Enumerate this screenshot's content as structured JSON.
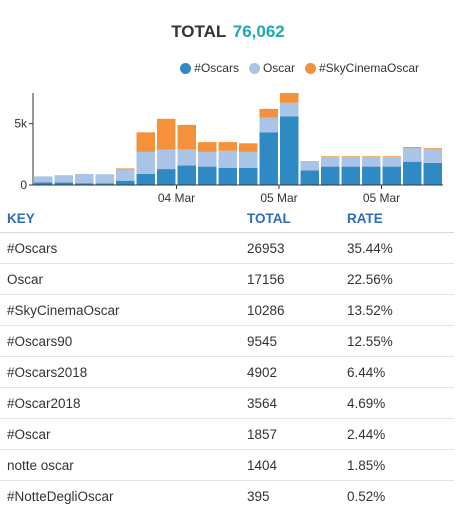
{
  "header": {
    "label": "TOTAL",
    "value": "76,062"
  },
  "colors": {
    "oscars_hash": "#2f8ac4",
    "oscar": "#a9c4e6",
    "skycinema": "#f5913b",
    "total_value": "#1fa6b3",
    "table_header": "#2e6db4"
  },
  "chart_data": {
    "type": "bar",
    "stacked": true,
    "title": "",
    "xlabel": "",
    "ylabel": "",
    "ylim": [
      0,
      7500
    ],
    "y_ticks": [
      0,
      5000
    ],
    "y_tick_labels": [
      "0",
      "5k"
    ],
    "x_tick_labels": [
      {
        "after_bar_index": 6,
        "label": "04 Mar"
      },
      {
        "after_bar_index": 11,
        "label": "05 Mar"
      },
      {
        "after_bar_index": 16,
        "label": "05 Mar"
      }
    ],
    "series": [
      {
        "name": "#Oscars",
        "color": "#2f8ac4",
        "values": [
          200,
          200,
          150,
          120,
          350,
          900,
          1300,
          1600,
          1500,
          1400,
          1400,
          4300,
          5600,
          1200,
          1500,
          1500,
          1500,
          1500,
          1900,
          1800
        ]
      },
      {
        "name": "Oscar",
        "color": "#a9c4e6",
        "values": [
          500,
          600,
          750,
          750,
          900,
          1800,
          1600,
          1300,
          1200,
          1400,
          1300,
          1200,
          1100,
          700,
          800,
          800,
          800,
          800,
          1100,
          1100
        ]
      },
      {
        "name": "#SkyCinemaOscar",
        "color": "#f5913b",
        "values": [
          0,
          0,
          0,
          0,
          100,
          1600,
          2500,
          2000,
          800,
          700,
          700,
          700,
          800,
          50,
          50,
          50,
          50,
          50,
          100,
          100
        ]
      }
    ]
  },
  "table": {
    "headers": [
      "KEY",
      "TOTAL",
      "RATE"
    ],
    "rows": [
      [
        "#Oscars",
        "26953",
        "35.44%"
      ],
      [
        "Oscar",
        "17156",
        "22.56%"
      ],
      [
        "#SkyCinemaOscar",
        "10286",
        "13.52%"
      ],
      [
        "#Oscars90",
        "9545",
        "12.55%"
      ],
      [
        "#Oscars2018",
        "4902",
        "6.44%"
      ],
      [
        "#Oscar2018",
        "3564",
        "4.69%"
      ],
      [
        "#Oscar",
        "1857",
        "2.44%"
      ],
      [
        "notte oscar",
        "1404",
        "1.85%"
      ],
      [
        "#NotteDegliOscar",
        "395",
        "0.52%"
      ]
    ]
  }
}
